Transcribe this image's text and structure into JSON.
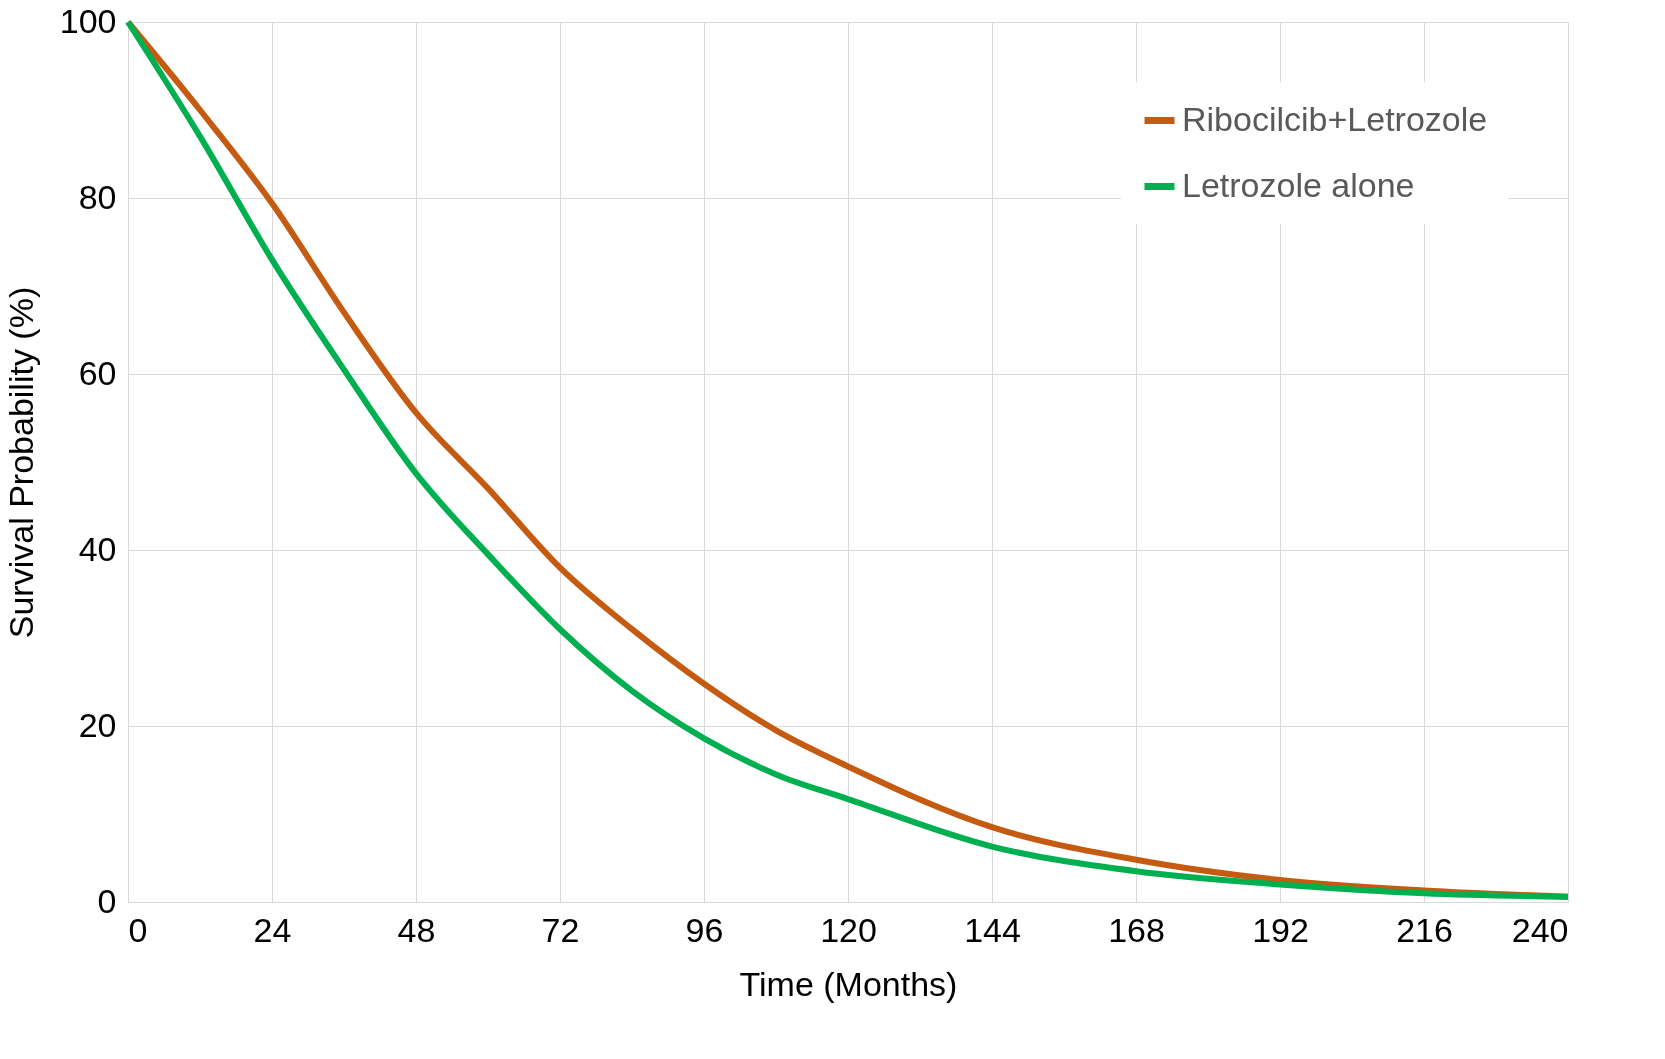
{
  "chart_data": {
    "type": "line",
    "xlabel": "Time (Months)",
    "ylabel": "Survival Probability (%)",
    "x": [
      0,
      12,
      24,
      36,
      48,
      60,
      72,
      84,
      96,
      108,
      120,
      144,
      168,
      192,
      216,
      240
    ],
    "series": [
      {
        "name": "Ribocilcib+Letrozole",
        "color": "#c55a11",
        "values": [
          100,
          90,
          79.4,
          67,
          55.6,
          47,
          38,
          31,
          24.8,
          19.5,
          15.4,
          8.5,
          4.8,
          2.5,
          1.3,
          0.6
        ]
      },
      {
        "name": "Letrozole alone",
        "color": "#00b050",
        "values": [
          100,
          87,
          73,
          60.5,
          48.7,
          39.5,
          31,
          24,
          18.6,
          14.5,
          11.7,
          6.3,
          3.5,
          2,
          1,
          0.6
        ]
      }
    ],
    "xlim": [
      0,
      240
    ],
    "xticks": [
      0,
      24,
      48,
      72,
      96,
      120,
      144,
      168,
      192,
      216,
      240
    ],
    "ylim": [
      0,
      100
    ],
    "yticks": [
      0,
      20,
      40,
      60,
      80,
      100
    ],
    "grid": true,
    "legend": "top right",
    "marker": "none",
    "line_style": "solid"
  }
}
